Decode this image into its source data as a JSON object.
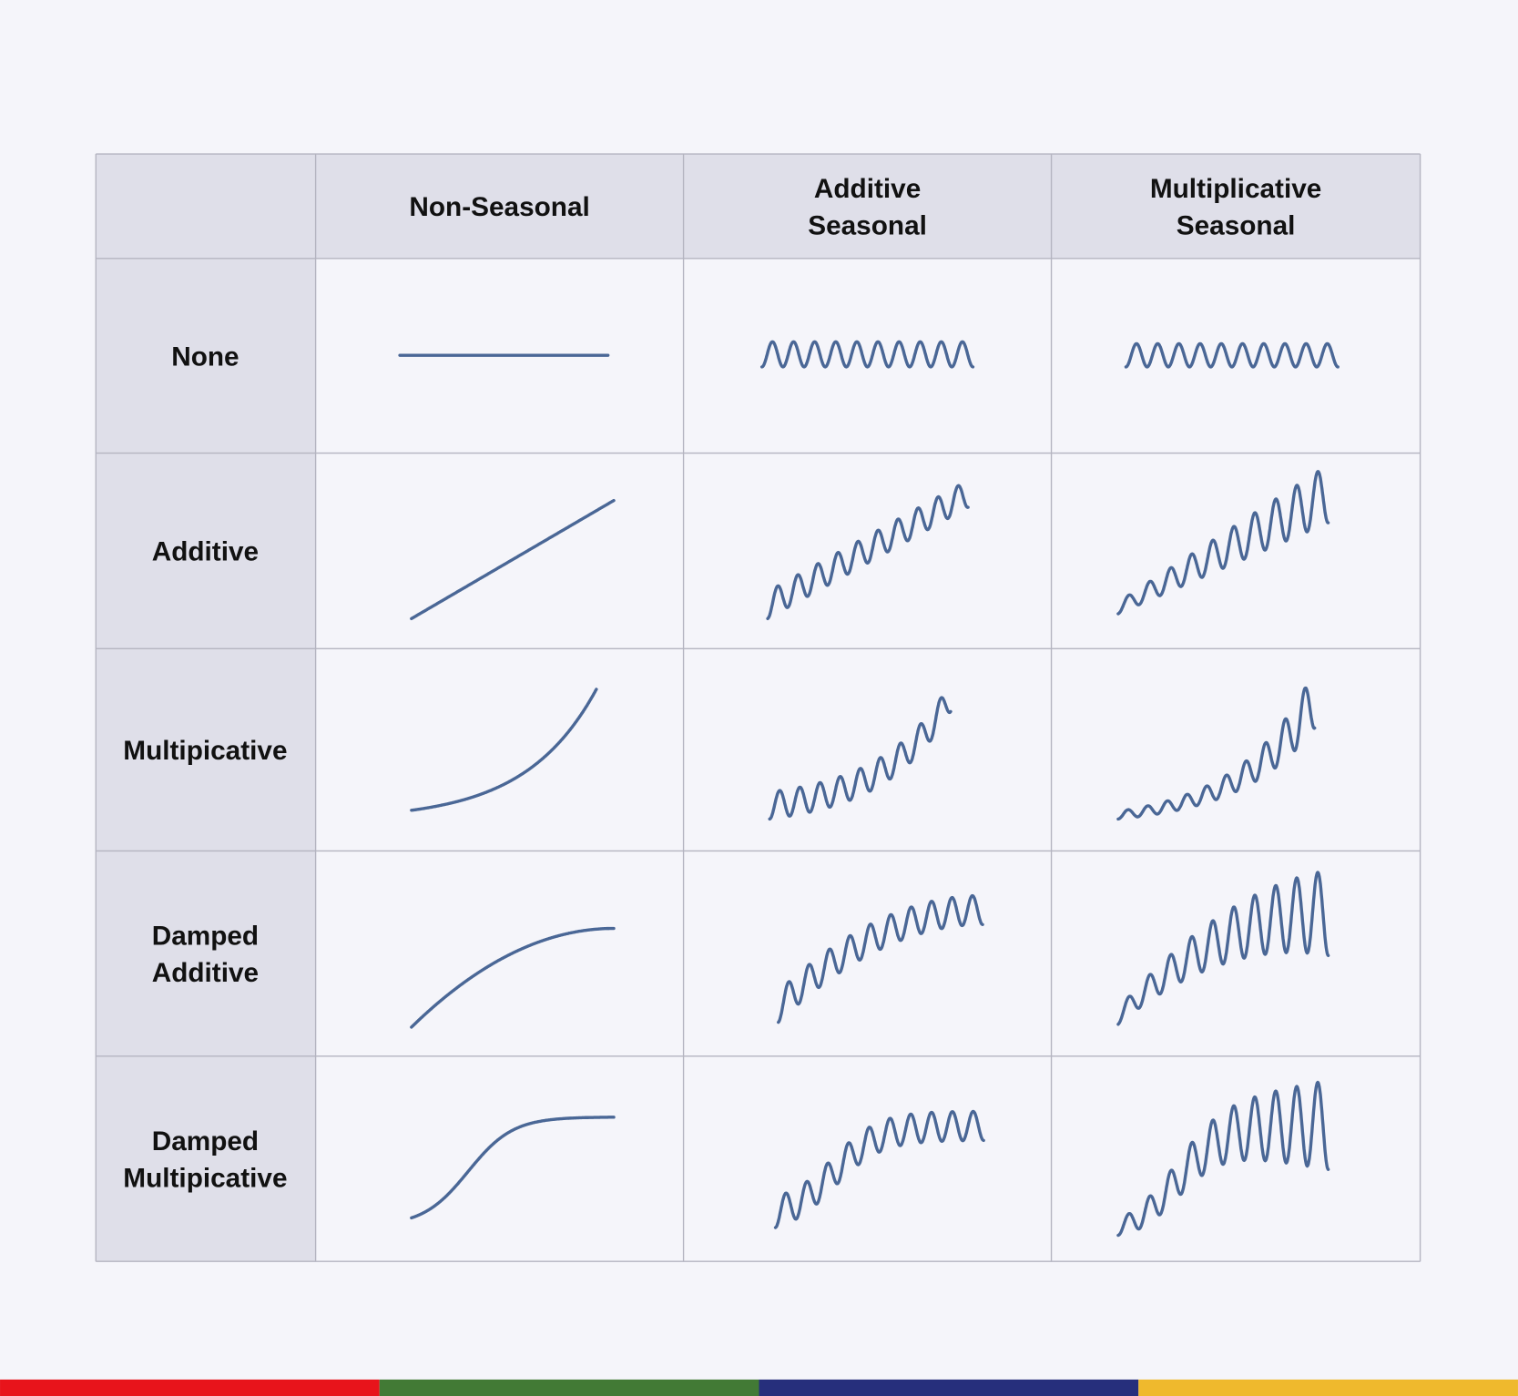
{
  "table": {
    "column_headers": [
      [
        "Non-Seasonal"
      ],
      [
        "Additive",
        "Seasonal"
      ],
      [
        "Multiplicative",
        "Seasonal"
      ]
    ],
    "row_headers": [
      [
        "None"
      ],
      [
        "Additive"
      ],
      [
        "Multipicative"
      ],
      [
        "Damped",
        "Additive"
      ],
      [
        "Damped",
        "Multipicative"
      ]
    ],
    "trend_types": [
      "none",
      "additive",
      "multiplicative",
      "damped-additive",
      "damped-multiplicative"
    ],
    "seasonal_types": [
      "non-seasonal",
      "additive-seasonal",
      "multiplicative-seasonal"
    ]
  },
  "colors": {
    "header_bg": "#dfdfe9",
    "cell_bg": "#f5f5fa",
    "curve": "#4a6796",
    "footer_stripes": [
      "#e8141b",
      "#427a35",
      "#262f7c",
      "#efb92d"
    ]
  }
}
